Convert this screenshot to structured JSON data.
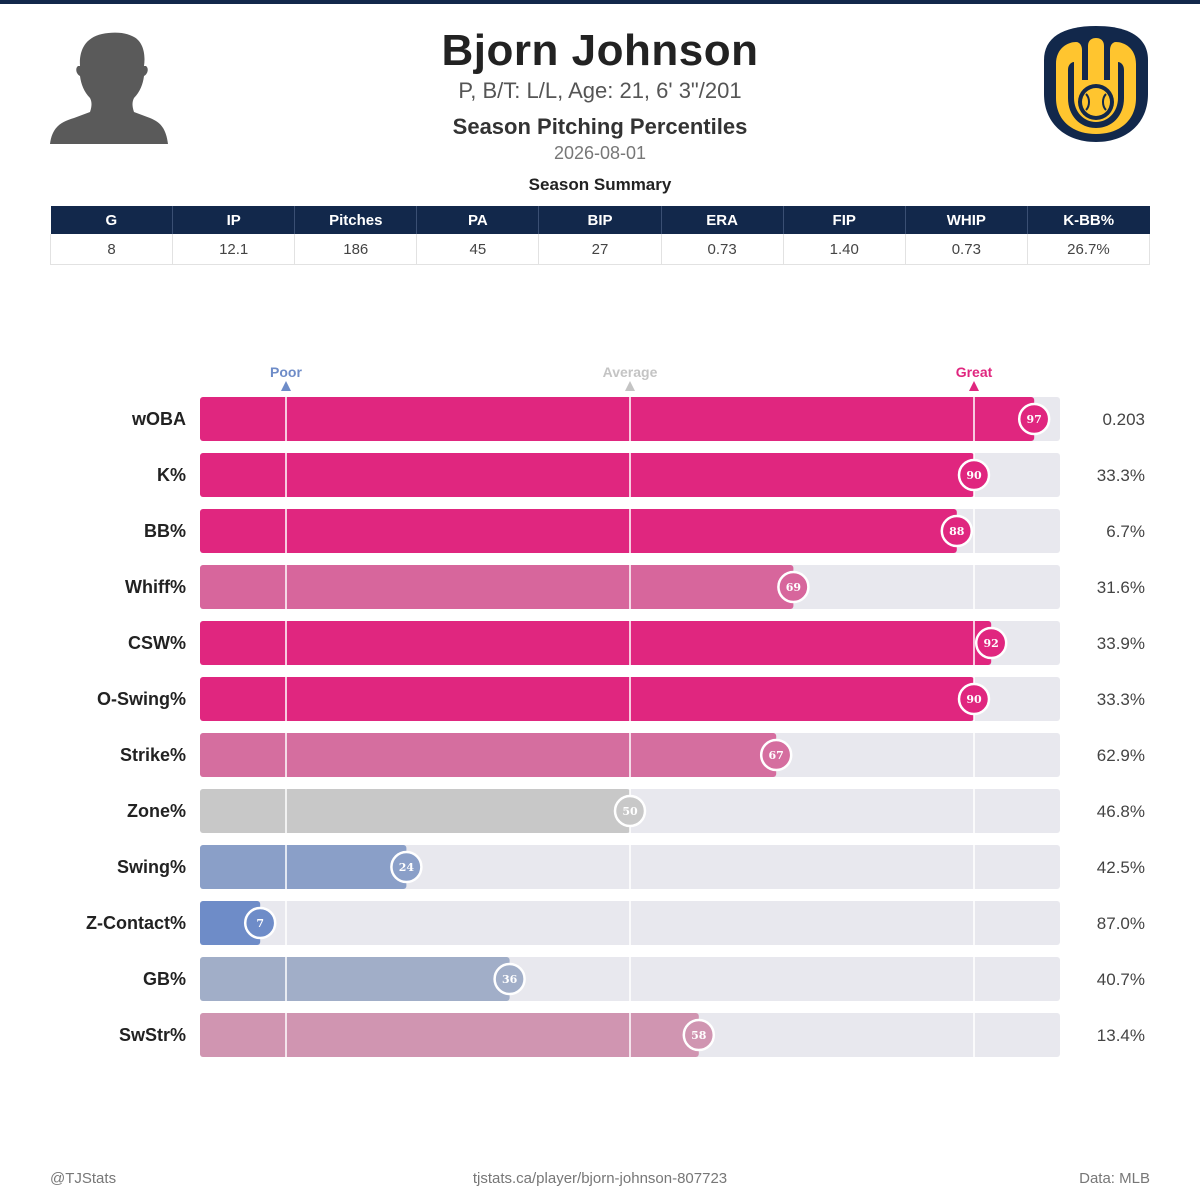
{
  "player": {
    "name": "Bjorn Johnson",
    "info": "P, B/T: L/L, Age: 21, 6' 3\"/201",
    "report_title": "Season Pitching Percentiles",
    "date": "2026-08-01"
  },
  "summary": {
    "title": "Season Summary",
    "headers": [
      "G",
      "IP",
      "Pitches",
      "PA",
      "BIP",
      "ERA",
      "FIP",
      "WHIP",
      "K-BB%"
    ],
    "values": [
      "8",
      "12.1",
      "186",
      "45",
      "27",
      "0.73",
      "1.40",
      "0.73",
      "26.7%"
    ]
  },
  "colors": {
    "navy": "#12284b",
    "great": "#e0267f",
    "average": "#c8c8c8",
    "poor": "#6e8cc8",
    "track": "#e8e8ee",
    "logo_gold": "#ffc52f"
  },
  "icons": {
    "player": "player-silhouette-icon",
    "team": "team-logo-icon"
  },
  "chart_data": {
    "type": "bar",
    "orientation": "horizontal",
    "xlim": [
      0,
      100
    ],
    "markers": [
      {
        "label": "Poor",
        "value": 10
      },
      {
        "label": "Average",
        "value": 50
      },
      {
        "label": "Great",
        "value": 90
      }
    ],
    "categories": [
      "wOBA",
      "K%",
      "BB%",
      "Whiff%",
      "CSW%",
      "O-Swing%",
      "Strike%",
      "Zone%",
      "Swing%",
      "Z-Contact%",
      "GB%",
      "SwStr%"
    ],
    "percentiles": [
      97,
      90,
      88,
      69,
      92,
      90,
      67,
      50,
      24,
      7,
      36,
      58
    ],
    "stat_values": [
      "0.203",
      "33.3%",
      "6.7%",
      "31.6%",
      "33.9%",
      "33.3%",
      "62.9%",
      "46.8%",
      "42.5%",
      "87.0%",
      "40.7%",
      "13.4%"
    ]
  },
  "footer": {
    "left": "@TJStats",
    "center": "tjstats.ca/player/bjorn-johnson-807723",
    "right": "Data: MLB"
  }
}
